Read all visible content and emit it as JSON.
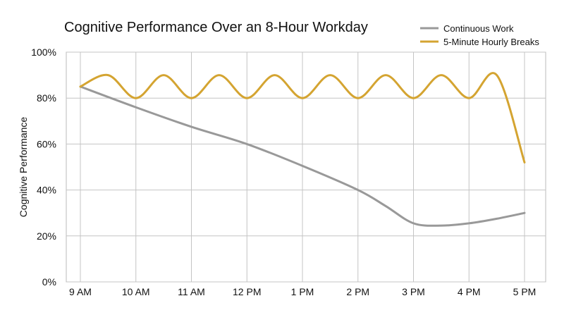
{
  "chart_data": {
    "type": "line",
    "title": "Cognitive Performance Over an 8-Hour Workday",
    "xlabel": "",
    "ylabel": "Cognitive Performance",
    "categories": [
      "9 AM",
      "10 AM",
      "11 AM",
      "12 PM",
      "1 PM",
      "2 PM",
      "3 PM",
      "4 PM",
      "5 PM"
    ],
    "yticks": [
      "0%",
      "20%",
      "40%",
      "60%",
      "80%",
      "100%"
    ],
    "ylim": [
      0,
      100
    ],
    "grid": true,
    "legend_position": "top-right",
    "series": [
      {
        "name": "Continuous Work",
        "color": "#999999",
        "x": [
          0,
          1,
          2,
          3,
          4,
          5,
          5.5,
          6,
          6.5,
          7,
          7.5,
          8
        ],
        "values": [
          85,
          76,
          67.5,
          60,
          50.5,
          40,
          33,
          25.5,
          24.5,
          25.5,
          27.5,
          30
        ]
      },
      {
        "name": "5-Minute Hourly Breaks",
        "color": "#d4a431",
        "x": [
          0,
          0.5,
          1,
          1.5,
          2,
          2.5,
          3,
          3.5,
          4,
          4.5,
          5,
          5.5,
          6,
          6.5,
          7,
          7.5,
          8
        ],
        "values": [
          85,
          90,
          80,
          90,
          80,
          90,
          80,
          90,
          80,
          90,
          80,
          90,
          80,
          90,
          80,
          90,
          52
        ]
      }
    ]
  }
}
